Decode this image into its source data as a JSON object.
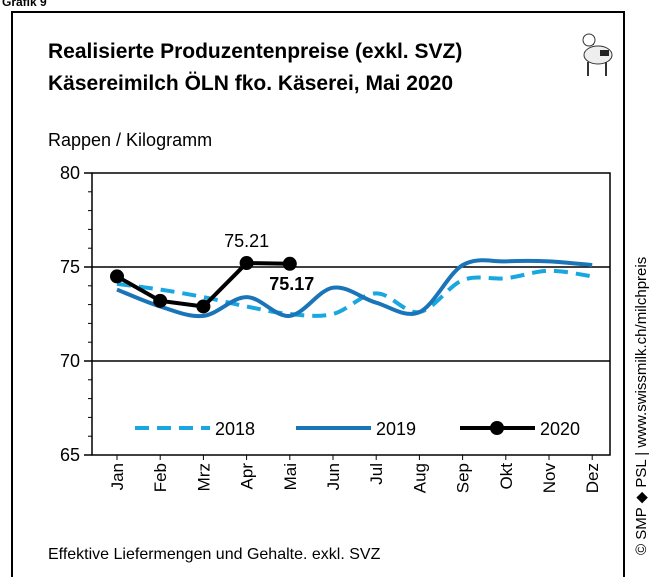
{
  "chart_data": {
    "type": "line",
    "header": "Grafik 9",
    "title": "Realisierte Produzentenpreise (exkl. SVZ)",
    "subtitle": "Käsereimilch ÖLN fko. Käserei, Mai 2020",
    "y_label": "Rappen / Kilogramm",
    "footnote": "Effektive Liefermengen und Gehalte. exkl. SVZ",
    "source": "© SMP ◆ PSL | www.swissmilk.ch/milchpreis",
    "categories": [
      "Jan",
      "Feb",
      "Mrz",
      "Apr",
      "Mai",
      "Jun",
      "Jul",
      "Aug",
      "Sep",
      "Okt",
      "Nov",
      "Dez"
    ],
    "series": [
      {
        "name": "2018",
        "color": "#1aa7e0",
        "dash": true,
        "values": [
          74.1,
          73.8,
          73.4,
          72.9,
          72.5,
          72.5,
          73.6,
          72.6,
          74.3,
          74.4,
          74.8,
          74.5
        ]
      },
      {
        "name": "2019",
        "color": "#1a74b8",
        "values": [
          73.8,
          72.9,
          72.4,
          73.4,
          72.4,
          73.9,
          73.1,
          72.6,
          75.1,
          75.3,
          75.3,
          75.1
        ]
      },
      {
        "name": "2020",
        "color": "#000000",
        "markers": true,
        "values": [
          74.5,
          73.2,
          72.9,
          75.21,
          75.17,
          null,
          null,
          null,
          null,
          null,
          null,
          null
        ]
      }
    ],
    "ylim": [
      65,
      80
    ],
    "yticks": [
      65,
      70,
      75,
      80
    ],
    "grid": true,
    "legend": "bottom"
  }
}
